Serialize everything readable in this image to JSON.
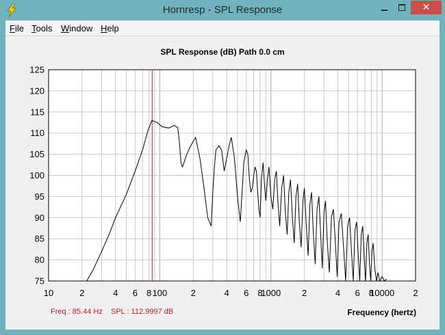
{
  "window": {
    "title": "Hornresp - SPL Response",
    "icon": "lightning-bolt-icon",
    "controls": {
      "close_glyph": "✕"
    }
  },
  "menu": {
    "items": [
      {
        "label": "File",
        "mnemonic": "F",
        "rest": "ile"
      },
      {
        "label": "Tools",
        "mnemonic": "T",
        "rest": "ools"
      },
      {
        "label": "Window",
        "mnemonic": "W",
        "rest": "indow"
      },
      {
        "label": "Help",
        "mnemonic": "H",
        "rest": "elp"
      }
    ]
  },
  "status": {
    "freq": "Freq : 85.44 Hz",
    "spl": "SPL : 112.9997 dB"
  },
  "colors": {
    "marker": "#cc1a1a",
    "trace": "#000000",
    "grid": "#c8c8c8",
    "plot_bg": "#ffffff"
  },
  "chart_data": {
    "type": "line",
    "title": "SPL Response (dB)   Path 0.0 cm",
    "xlabel": "Frequency (hertz)",
    "ylabel": "",
    "x_scale": "log",
    "xlim": [
      10,
      20000
    ],
    "ylim": [
      75,
      125
    ],
    "grid": true,
    "y_ticks": [
      75,
      80,
      85,
      90,
      95,
      100,
      105,
      110,
      115,
      120,
      125
    ],
    "x_tick_labels": [
      {
        "x": 10,
        "label": "10"
      },
      {
        "x": 20,
        "label": "2"
      },
      {
        "x": 40,
        "label": "4"
      },
      {
        "x": 60,
        "label": "6"
      },
      {
        "x": 80,
        "label": "8"
      },
      {
        "x": 100,
        "label": "100"
      },
      {
        "x": 200,
        "label": "2"
      },
      {
        "x": 400,
        "label": "4"
      },
      {
        "x": 600,
        "label": "6"
      },
      {
        "x": 800,
        "label": "8"
      },
      {
        "x": 1000,
        "label": "1000"
      },
      {
        "x": 2000,
        "label": "2"
      },
      {
        "x": 4000,
        "label": "4"
      },
      {
        "x": 6000,
        "label": "6"
      },
      {
        "x": 8000,
        "label": "8"
      },
      {
        "x": 10000,
        "label": "10000"
      },
      {
        "x": 20000,
        "label": "2"
      }
    ],
    "marker_x": 85.44,
    "series": [
      {
        "x": [
          22,
          25,
          30,
          35,
          40,
          50,
          60,
          70,
          78,
          85,
          95,
          105,
          120,
          135,
          145,
          150,
          155,
          160,
          165,
          175,
          190,
          210,
          230,
          250,
          270,
          290,
          300,
          310,
          320,
          340,
          360,
          380,
          400,
          420,
          440,
          470,
          500,
          530,
          550,
          570,
          600,
          620,
          640,
          660,
          680,
          700,
          720,
          740,
          760,
          780,
          800,
          820,
          850,
          880,
          900,
          930,
          960,
          1000,
          1040,
          1080,
          1120,
          1160,
          1200,
          1250,
          1300,
          1350,
          1400,
          1450,
          1500,
          1560,
          1620,
          1680,
          1740,
          1800,
          1870,
          1940,
          2000,
          2080,
          2160,
          2240,
          2320,
          2400,
          2500,
          2600,
          2700,
          2800,
          2900,
          3000,
          3100,
          3200,
          3350,
          3500,
          3650,
          3800,
          3950,
          4100,
          4300,
          4500,
          4700,
          4900,
          5100,
          5300,
          5500,
          5700,
          5900,
          6100,
          6300,
          6500,
          6700,
          6900,
          7100,
          7300,
          7500,
          7700,
          7900,
          8100,
          8300,
          8600,
          8900,
          9200,
          9500,
          10000,
          10500,
          11000
        ],
        "y": [
          75,
          77.5,
          82,
          86,
          90,
          95.5,
          101,
          106,
          110.5,
          113,
          112.5,
          111.5,
          111.2,
          111.8,
          111.3,
          108,
          103,
          102,
          103,
          105,
          107,
          109,
          104,
          97,
          90,
          88,
          96,
          102,
          106,
          107,
          106,
          101,
          104,
          107,
          109,
          104,
          95,
          89,
          96,
          103,
          106,
          105,
          99,
          96,
          97,
          100,
          102,
          101,
          96,
          92,
          90,
          99,
          103,
          97,
          94,
          99,
          102,
          95,
          92,
          99,
          101,
          93,
          88,
          97,
          100,
          91,
          86,
          96,
          99,
          90,
          84,
          95,
          98,
          89,
          83,
          94,
          97,
          88,
          81,
          93,
          96,
          87,
          79,
          92,
          95,
          86,
          78,
          91,
          94,
          85,
          77,
          90,
          92,
          84,
          76,
          89,
          91,
          83,
          75,
          88,
          90,
          82,
          75,
          87,
          89,
          81,
          75,
          86,
          88,
          80,
          75,
          84,
          86,
          79,
          75,
          82,
          84,
          78,
          75,
          77,
          75,
          76,
          75,
          75.5
        ]
      }
    ]
  }
}
